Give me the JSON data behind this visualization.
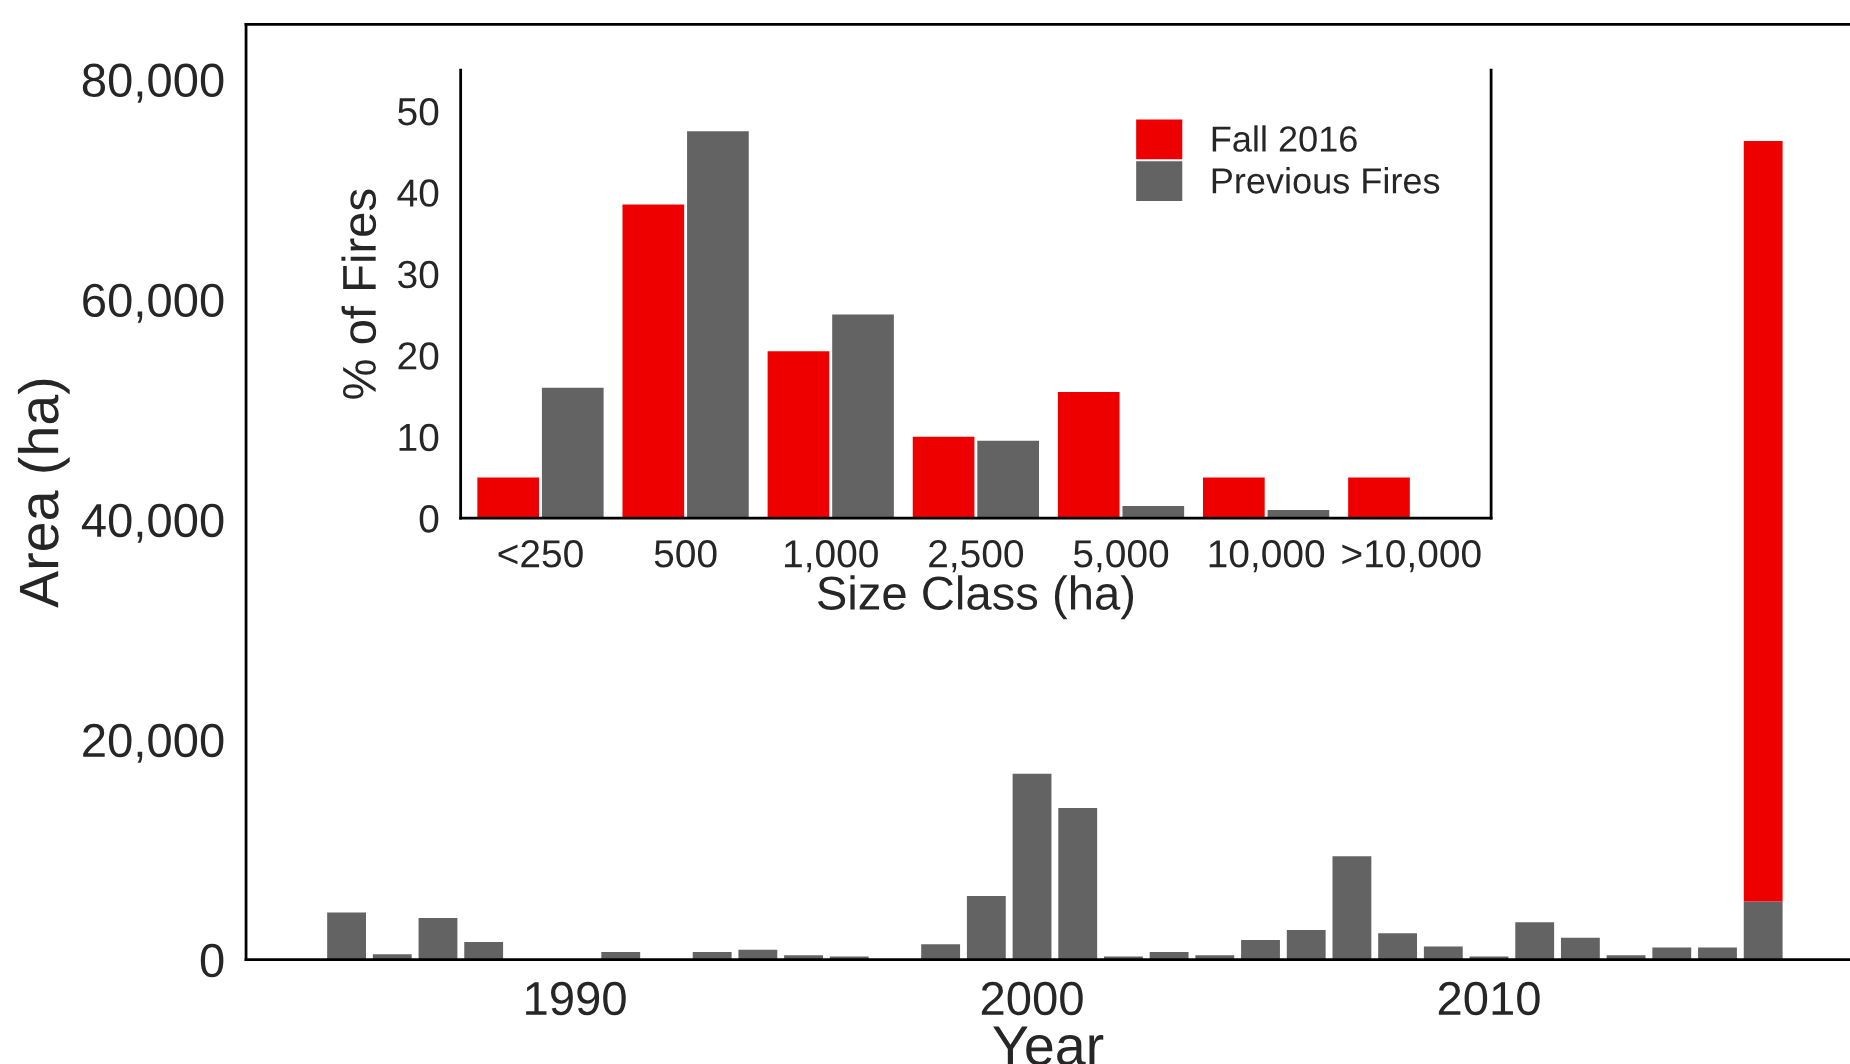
{
  "chart_data": [
    {
      "type": "bar",
      "stacked": true,
      "xlabel": "Year",
      "ylabel": "Area (ha)",
      "x": [
        1985,
        1986,
        1987,
        1988,
        1989,
        1990,
        1991,
        1992,
        1993,
        1994,
        1995,
        1996,
        1997,
        1998,
        1999,
        2000,
        2001,
        2002,
        2003,
        2004,
        2005,
        2006,
        2007,
        2008,
        2009,
        2010,
        2011,
        2012,
        2013,
        2014,
        2015,
        2016
      ],
      "series": [
        {
          "color": "#636363",
          "values": [
            4300,
            500,
            3800,
            1600,
            null,
            null,
            700,
            null,
            700,
            900,
            400,
            300,
            null,
            1400,
            5800,
            16900,
            13800,
            300,
            700,
            400,
            1800,
            2700,
            9400,
            2400,
            1200,
            300,
            3400,
            2000,
            400,
            1100,
            1100,
            5300
          ]
        },
        {
          "color": "#ee0000",
          "values": [
            null,
            null,
            null,
            null,
            null,
            null,
            null,
            null,
            null,
            null,
            null,
            null,
            null,
            null,
            null,
            null,
            null,
            null,
            null,
            null,
            null,
            null,
            null,
            null,
            null,
            null,
            null,
            null,
            null,
            null,
            null,
            69100
          ]
        }
      ],
      "xlim": [
        1982.8,
        2017.9
      ],
      "xticks": [
        1990,
        2000,
        2010
      ],
      "ylim": [
        0,
        85000
      ],
      "yticks": [
        {
          "value": 0,
          "label": "0"
        },
        {
          "value": 20000,
          "label": "20,000"
        },
        {
          "value": 40000,
          "label": "40,000"
        },
        {
          "value": 60000,
          "label": "60,000"
        },
        {
          "value": 80000,
          "label": "80,000"
        }
      ],
      "grid": false,
      "legend": false
    },
    {
      "type": "bar",
      "xlabel": "Size Class (ha)",
      "ylabel": "% of Fires",
      "categories": [
        "<250",
        "500",
        "1,000",
        "2,500",
        "5,000",
        "10,000",
        ">10,000"
      ],
      "series": [
        {
          "name": "Fall 2016",
          "color": "#ee0000",
          "values": [
            5,
            38.5,
            20.5,
            10,
            15.5,
            5,
            5
          ]
        },
        {
          "name": "Previous Fires",
          "color": "#636363",
          "values": [
            16,
            47.5,
            25,
            9.5,
            1.5,
            1,
            0
          ]
        }
      ],
      "ylim": [
        0,
        55
      ],
      "yticks": [
        0,
        10,
        20,
        30,
        40,
        50
      ],
      "grid": false,
      "legend": "top right"
    }
  ]
}
